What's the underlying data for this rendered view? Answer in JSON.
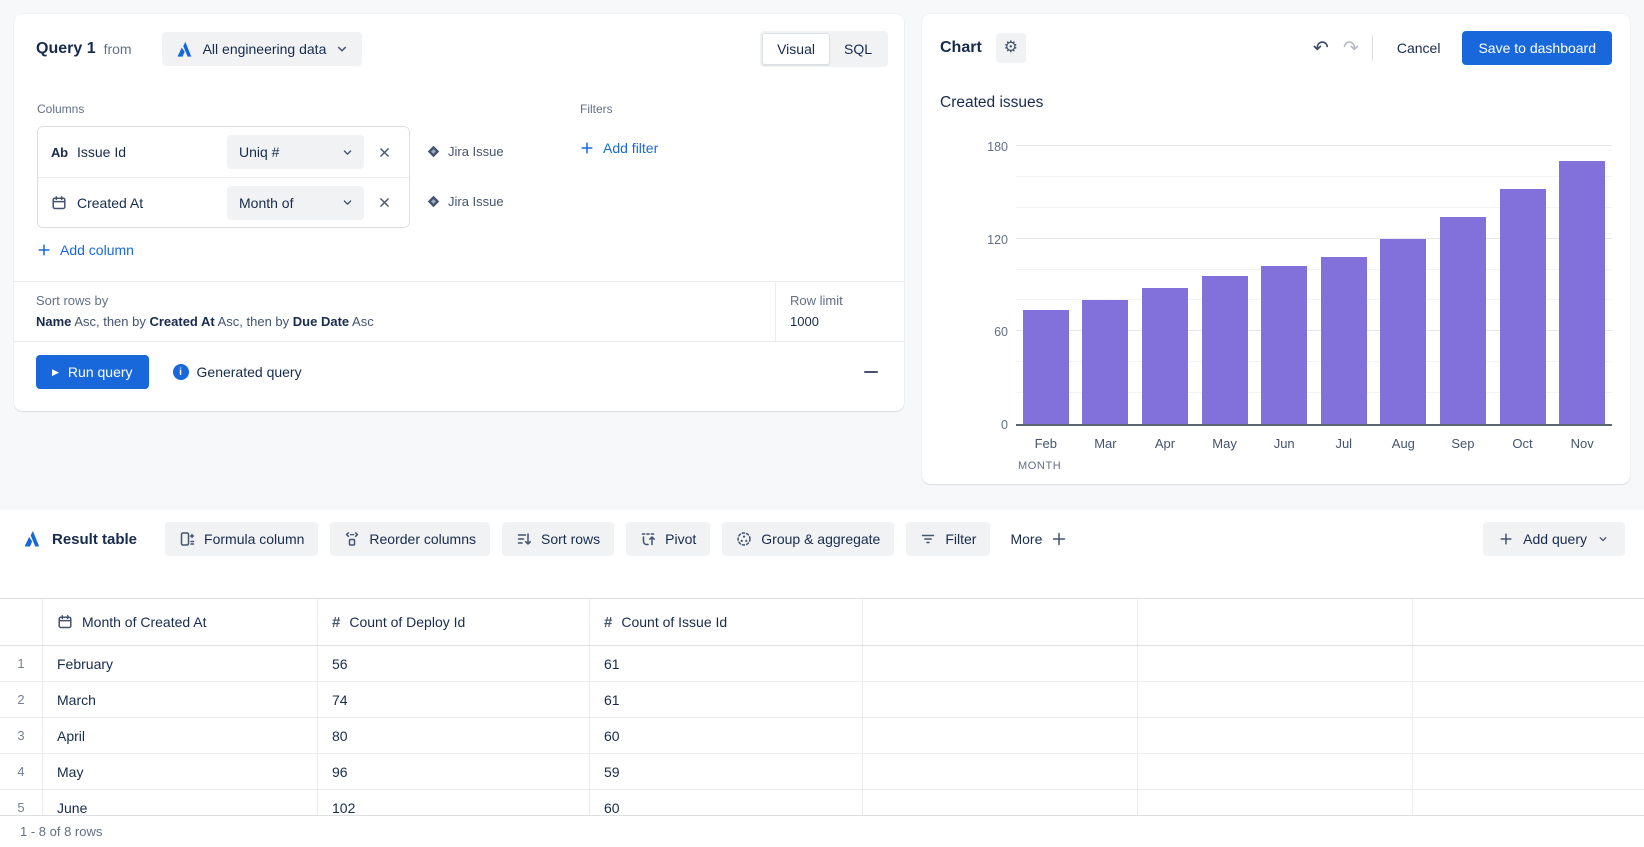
{
  "query_panel": {
    "title": "Query 1",
    "from_label": "from",
    "source_label": "All engineering data",
    "view_toggle": {
      "visual": "Visual",
      "sql": "SQL",
      "selected": "Visual"
    },
    "columns_label": "Columns",
    "columns": [
      {
        "name": "Issue Id",
        "type": "text",
        "aggregation": "Uniq #",
        "source": "Jira Issue"
      },
      {
        "name": "Created At",
        "type": "date",
        "aggregation": "Month of",
        "source": "Jira Issue"
      }
    ],
    "add_column_label": "Add column",
    "filters_label": "Filters",
    "add_filter_label": "Add filter",
    "sort_label": "Sort rows by",
    "sort_parts": [
      {
        "text": "Name",
        "bold": true
      },
      {
        "text": " Asc, then by ",
        "bold": false
      },
      {
        "text": "Created At",
        "bold": true
      },
      {
        "text": " Asc, then by ",
        "bold": false
      },
      {
        "text": "Due Date",
        "bold": true
      },
      {
        "text": " Asc",
        "bold": false
      }
    ],
    "row_limit_label": "Row limit",
    "row_limit_value": "1000",
    "run_query_label": "Run query",
    "generated_query_label": "Generated query"
  },
  "chart_panel": {
    "title": "Chart",
    "cancel_label": "Cancel",
    "save_label": "Save to dashboard"
  },
  "chart_data": {
    "type": "bar",
    "title": "Created issues",
    "categories": [
      "Feb",
      "Mar",
      "Apr",
      "May",
      "Jun",
      "Jul",
      "Aug",
      "Sep",
      "Oct",
      "Nov"
    ],
    "values": [
      74,
      80,
      88,
      96,
      102,
      108,
      120,
      134,
      152,
      170
    ],
    "xlabel": "MONTH",
    "ylabel": "",
    "ylim": [
      0,
      180
    ],
    "yticks": [
      0,
      60,
      120,
      180
    ],
    "minor_gridline_step": 20,
    "grid": true,
    "legend": false,
    "bar_color": "#8270db"
  },
  "result_section": {
    "title": "Result table",
    "toolbar": [
      {
        "name": "formula-column-button",
        "icon": "formula-column-icon",
        "label": "Formula column"
      },
      {
        "name": "reorder-columns-button",
        "icon": "reorder-columns-icon",
        "label": "Reorder columns"
      },
      {
        "name": "sort-rows-button",
        "icon": "sort-rows-icon",
        "label": "Sort rows"
      },
      {
        "name": "pivot-button",
        "icon": "pivot-icon",
        "label": "Pivot"
      },
      {
        "name": "group-aggregate-button",
        "icon": "group-aggregate-icon",
        "label": "Group & aggregate"
      },
      {
        "name": "filter-button",
        "icon": "filter-icon",
        "label": "Filter"
      }
    ],
    "more_label": "More",
    "add_query_label": "Add query",
    "table": {
      "headers": [
        {
          "icon": "calendar-icon",
          "label": "Month of Created At"
        },
        {
          "icon": "hash-icon",
          "label": "Count of Deploy Id"
        },
        {
          "icon": "hash-icon",
          "label": "Count of Issue Id"
        },
        {
          "icon": "",
          "label": ""
        },
        {
          "icon": "",
          "label": ""
        },
        {
          "icon": "",
          "label": ""
        }
      ],
      "rows": [
        {
          "num": "1",
          "cells": [
            "February",
            "56",
            "61",
            "",
            "",
            ""
          ]
        },
        {
          "num": "2",
          "cells": [
            "March",
            "74",
            "61",
            "",
            "",
            ""
          ]
        },
        {
          "num": "3",
          "cells": [
            "April",
            "80",
            "60",
            "",
            "",
            ""
          ]
        },
        {
          "num": "4",
          "cells": [
            "May",
            "96",
            "59",
            "",
            "",
            ""
          ]
        },
        {
          "num": "5",
          "cells": [
            "June",
            "102",
            "60",
            "",
            "",
            ""
          ],
          "partially_visible": true
        }
      ]
    },
    "footer": "1 - 8 of 8 rows"
  },
  "colors": {
    "accent_blue": "#1868db",
    "bar_purple": "#8270db"
  }
}
